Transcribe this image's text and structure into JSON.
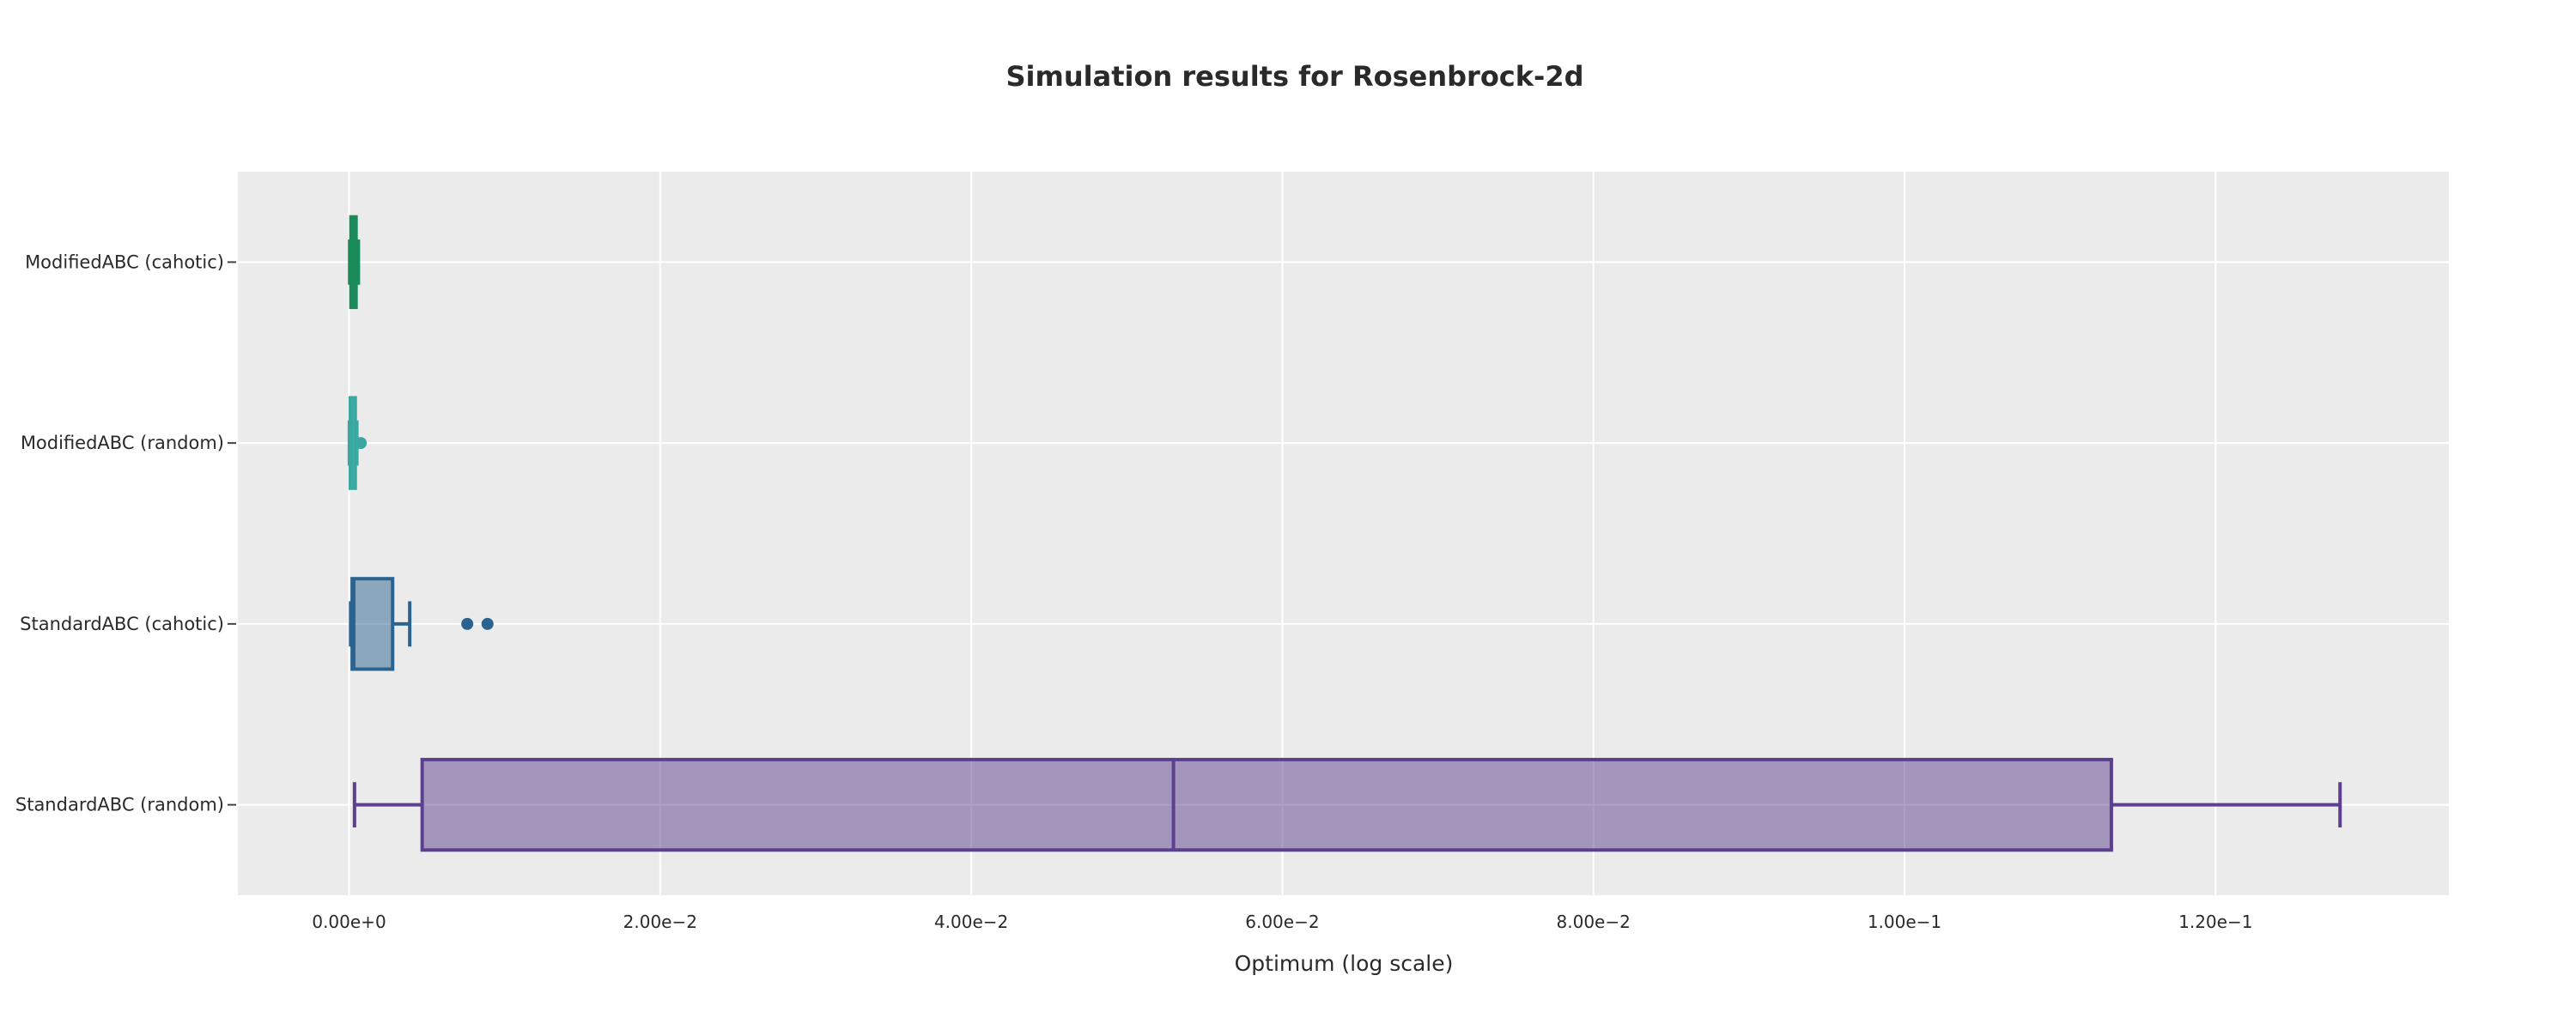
{
  "chart_data": {
    "type": "box",
    "title": "Simulation results for Rosenbrock-2d",
    "xlabel": "Optimum (log scale)",
    "ylabel": "",
    "xlim": [
      -0.00715,
      0.135
    ],
    "x_ticks": [
      {
        "value": 0,
        "label": "0.00e+0"
      },
      {
        "value": 0.02,
        "label": "2.00e−2"
      },
      {
        "value": 0.04,
        "label": "4.00e−2"
      },
      {
        "value": 0.06,
        "label": "6.00e−2"
      },
      {
        "value": 0.08,
        "label": "8.00e−2"
      },
      {
        "value": 0.1,
        "label": "1.00e−1"
      },
      {
        "value": 0.12,
        "label": "1.20e−1"
      }
    ],
    "grid": true,
    "legend": "none",
    "categories": [
      "ModifiedABC (cahotic)",
      "ModifiedABC (random)",
      "StandardABC (cahotic)",
      "StandardABC (random)"
    ],
    "series": [
      {
        "category": "ModifiedABC (cahotic)",
        "color": "#1a8a5a",
        "min": 4e-05,
        "q1": 0.00012,
        "median": 0.00025,
        "q3": 0.00045,
        "max": 0.0006,
        "outliers": []
      },
      {
        "category": "ModifiedABC (random)",
        "color": "#3aa8a0",
        "min": 2e-05,
        "q1": 8e-05,
        "median": 0.00018,
        "q3": 0.0004,
        "max": 0.0005,
        "outliers": [
          0.00075
        ]
      },
      {
        "category": "StandardABC (cahotic)",
        "color": "#2b6390",
        "min": 0.0001,
        "q1": 0.0002,
        "median": 0.0003,
        "q3": 0.0028,
        "max": 0.0039,
        "outliers": [
          0.0076,
          0.0089
        ]
      },
      {
        "category": "StandardABC (random)",
        "color": "#5c3f8e",
        "min": 0.00035,
        "q1": 0.0047,
        "median": 0.053,
        "q3": 0.1133,
        "max": 0.128,
        "outliers": []
      }
    ],
    "colors": {
      "plot_bg": "#ebebeb",
      "grid": "#ffffff",
      "text": "#2a2a2a"
    }
  }
}
